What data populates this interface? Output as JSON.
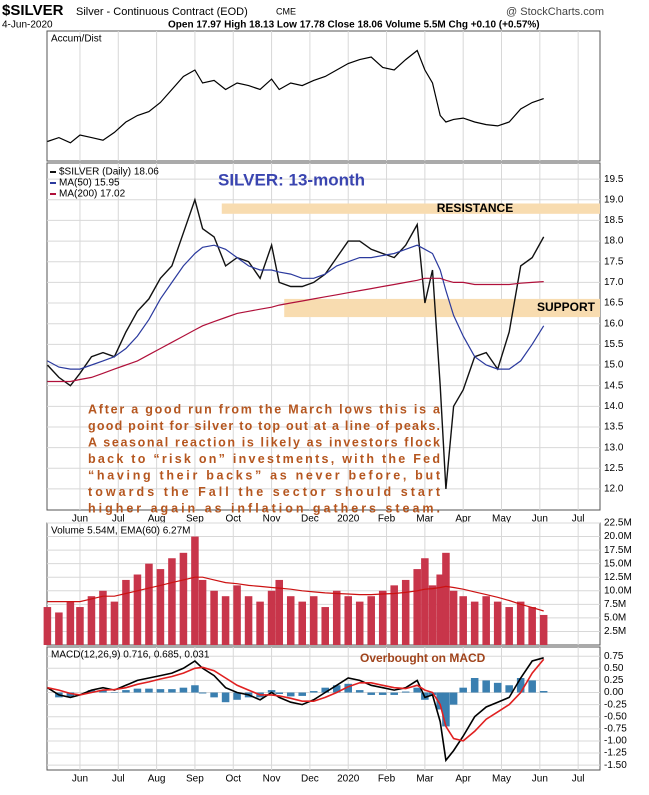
{
  "header": {
    "symbol": "$SILVER",
    "name": "Silver - Continuous Contract (EOD)",
    "exchange": "CME",
    "source": "@ StockCharts.com",
    "date": "4-Jun-2020",
    "quote": "Open 17.97  High 18.13  Low 17.78  Close 18.06  Volume 5.5M  Chg +0.10 (+0.57%)"
  },
  "chart_data": [
    {
      "type": "line",
      "legend": "Accum/Dist",
      "xlim": [
        -0.86,
        13.57
      ],
      "ylim": [
        0,
        100
      ],
      "x": [
        -0.85,
        -0.55,
        -0.25,
        0,
        0.3,
        0.6,
        0.9,
        1.2,
        1.5,
        1.8,
        2.1,
        2.4,
        2.7,
        3.0,
        3.2,
        3.5,
        3.8,
        4.1,
        4.4,
        4.7,
        5.0,
        5.2,
        5.5,
        5.8,
        6.1,
        6.4,
        6.7,
        7.0,
        7.3,
        7.6,
        7.9,
        8.2,
        8.5,
        8.8,
        9.0,
        9.2,
        9.4,
        9.55,
        9.75,
        10.0,
        10.3,
        10.6,
        10.9,
        11.2,
        11.5,
        11.8,
        12.1
      ],
      "series": [
        {
          "color": "#000000",
          "values": [
            15,
            18,
            14,
            20,
            18,
            16,
            22,
            30,
            35,
            38,
            45,
            55,
            65,
            70,
            60,
            62,
            55,
            60,
            58,
            55,
            63,
            55,
            60,
            58,
            62,
            65,
            70,
            75,
            78,
            80,
            72,
            70,
            78,
            85,
            70,
            60,
            35,
            30,
            32,
            33,
            30,
            28,
            27,
            30,
            40,
            45,
            48
          ]
        }
      ]
    },
    {
      "type": "line",
      "title": "SILVER: 13-month",
      "xlim": [
        -0.86,
        13.57
      ],
      "ylim": [
        11.49,
        19.89
      ],
      "xticks": [
        {
          "value": 0,
          "label": "Jun"
        },
        {
          "value": 1,
          "label": "Jul"
        },
        {
          "value": 2,
          "label": "Aug"
        },
        {
          "value": 3,
          "label": "Sep"
        },
        {
          "value": 4,
          "label": "Oct"
        },
        {
          "value": 5,
          "label": "Nov"
        },
        {
          "value": 6,
          "label": "Dec"
        },
        {
          "value": 7,
          "label": "2020"
        },
        {
          "value": 8,
          "label": "Feb"
        },
        {
          "value": 9,
          "label": "Mar"
        },
        {
          "value": 10,
          "label": "Apr"
        },
        {
          "value": 11,
          "label": "May"
        },
        {
          "value": 12,
          "label": "Jun"
        },
        {
          "value": 13,
          "label": "Jul"
        }
      ],
      "yticks": [
        {
          "value": 12,
          "label": "12.0"
        },
        {
          "value": 12.5,
          "label": "12.5"
        },
        {
          "value": 13,
          "label": "13.0"
        },
        {
          "value": 13.5,
          "label": "13.5"
        },
        {
          "value": 14,
          "label": "14.0"
        },
        {
          "value": 14.5,
          "label": "14.5"
        },
        {
          "value": 15,
          "label": "15.0"
        },
        {
          "value": 15.5,
          "label": "15.5"
        },
        {
          "value": 16,
          "label": "16.0"
        },
        {
          "value": 16.5,
          "label": "16.5"
        },
        {
          "value": 17,
          "label": "17.0"
        },
        {
          "value": 17.5,
          "label": "17.5"
        },
        {
          "value": 18,
          "label": "18.0"
        },
        {
          "value": 18.5,
          "label": "18.5"
        },
        {
          "value": 19,
          "label": "19.0"
        },
        {
          "value": 19.5,
          "label": "19.5"
        }
      ],
      "grid": true,
      "x": [
        -0.85,
        -0.55,
        -0.25,
        0,
        0.3,
        0.6,
        0.9,
        1.2,
        1.5,
        1.8,
        2.1,
        2.4,
        2.7,
        3.0,
        3.2,
        3.5,
        3.8,
        4.1,
        4.4,
        4.7,
        5.0,
        5.2,
        5.5,
        5.8,
        6.1,
        6.4,
        6.7,
        7.0,
        7.3,
        7.6,
        7.9,
        8.2,
        8.5,
        8.8,
        9.0,
        9.2,
        9.4,
        9.55,
        9.75,
        10.0,
        10.3,
        10.6,
        10.9,
        11.2,
        11.5,
        11.8,
        12.1
      ],
      "series": [
        {
          "name": "$SILVER (Daily) 18.06",
          "color": "#111111",
          "values": [
            15.0,
            14.7,
            14.5,
            14.8,
            15.2,
            15.3,
            15.2,
            15.8,
            16.3,
            16.6,
            17.1,
            17.4,
            18.2,
            19.0,
            18.3,
            18.1,
            17.4,
            17.6,
            17.5,
            17.1,
            17.9,
            17.0,
            16.9,
            16.9,
            17.0,
            17.2,
            17.6,
            18.0,
            18.0,
            17.8,
            17.7,
            17.6,
            17.9,
            18.4,
            16.5,
            17.3,
            14.5,
            12.0,
            14.0,
            14.4,
            15.2,
            15.3,
            14.9,
            15.8,
            17.4,
            17.6,
            18.1
          ]
        },
        {
          "name": "MA(50) 15.95",
          "color": "#2b3a9e",
          "values": [
            15.1,
            14.95,
            14.9,
            14.9,
            15.0,
            15.1,
            15.2,
            15.4,
            15.7,
            16.1,
            16.6,
            17.0,
            17.4,
            17.7,
            17.85,
            17.9,
            17.8,
            17.6,
            17.4,
            17.3,
            17.3,
            17.25,
            17.2,
            17.1,
            17.1,
            17.2,
            17.4,
            17.5,
            17.6,
            17.6,
            17.65,
            17.7,
            17.8,
            17.9,
            17.8,
            17.7,
            17.3,
            16.8,
            16.2,
            15.7,
            15.2,
            15.0,
            14.9,
            14.9,
            15.1,
            15.5,
            15.95
          ]
        },
        {
          "name": "MA(200) 17.02",
          "color": "#b0103a",
          "values": [
            14.6,
            14.6,
            14.6,
            14.65,
            14.7,
            14.8,
            14.9,
            15.0,
            15.1,
            15.25,
            15.4,
            15.55,
            15.7,
            15.85,
            15.95,
            16.05,
            16.15,
            16.25,
            16.3,
            16.35,
            16.4,
            16.45,
            16.5,
            16.55,
            16.6,
            16.65,
            16.7,
            16.75,
            16.8,
            16.85,
            16.9,
            16.95,
            17.0,
            17.05,
            17.1,
            17.1,
            17.1,
            17.05,
            17.0,
            17.0,
            16.95,
            16.95,
            16.95,
            16.95,
            16.98,
            17.0,
            17.02
          ]
        }
      ],
      "bands": [
        {
          "label": "RESISTANCE",
          "range": [
            18.66,
            18.91
          ],
          "x_start": 3.7,
          "color": "#f8dcb0"
        },
        {
          "label": "SUPPORT",
          "range": [
            16.16,
            16.6
          ],
          "x_start": 5.33,
          "color": "#f8dcb0"
        }
      ],
      "annotation": [
        "After a good run from the March lows this is a",
        "good point for silver to top out at a line of peaks.",
        "A seasonal reaction is likely as investors flock",
        "back to “risk on” investments, with the Fed",
        "“having their backs” as never before, but",
        "towards the Fall the sector should start",
        "higher again as inflation gathers steam."
      ]
    },
    {
      "type": "bar",
      "legend": "Volume 5.54M, EMA(60) 6.27M",
      "xlim": [
        -0.86,
        13.57
      ],
      "ylim": [
        0,
        22.5
      ],
      "yticks": [
        {
          "value": 2.5,
          "label": "2.5M"
        },
        {
          "value": 5,
          "label": "5.0M"
        },
        {
          "value": 7.5,
          "label": "7.5M"
        },
        {
          "value": 10,
          "label": "10.0M"
        },
        {
          "value": 12.5,
          "label": "12.5M"
        },
        {
          "value": 15,
          "label": "15.0M"
        },
        {
          "value": 17.5,
          "label": "17.5M"
        },
        {
          "value": 20,
          "label": "20.0M"
        },
        {
          "value": 22.5,
          "label": "22.5M"
        }
      ],
      "grid": true,
      "x": [
        -0.85,
        -0.55,
        -0.25,
        0,
        0.3,
        0.6,
        0.9,
        1.2,
        1.5,
        1.8,
        2.1,
        2.4,
        2.7,
        3.0,
        3.2,
        3.5,
        3.8,
        4.1,
        4.4,
        4.7,
        5.0,
        5.2,
        5.5,
        5.8,
        6.1,
        6.4,
        6.7,
        7.0,
        7.3,
        7.6,
        7.9,
        8.2,
        8.5,
        8.8,
        9.0,
        9.2,
        9.4,
        9.55,
        9.75,
        10.0,
        10.3,
        10.6,
        10.9,
        11.2,
        11.5,
        11.8,
        12.1
      ],
      "series": [
        {
          "type": "bar",
          "color": "#c8354a",
          "values": [
            7,
            6,
            8,
            7,
            9,
            10,
            8,
            12,
            13,
            15,
            14,
            16,
            17,
            20,
            12,
            10,
            9,
            11,
            9,
            8,
            10,
            12,
            9,
            8,
            9,
            7,
            10,
            9,
            8,
            9,
            10,
            11,
            12,
            14,
            16,
            11,
            13,
            17,
            10,
            9,
            8,
            9,
            8,
            7,
            8,
            7,
            5.54
          ]
        },
        {
          "type": "line",
          "color": "#cc1111",
          "values": [
            8,
            8,
            8,
            8,
            8.5,
            9,
            9,
            9.5,
            10,
            10.5,
            11,
            11.5,
            12,
            12.5,
            12.5,
            12,
            11.5,
            11.3,
            11,
            10.8,
            10.6,
            10.5,
            10.3,
            10,
            9.8,
            9.6,
            9.5,
            9.4,
            9.3,
            9.3,
            9.4,
            9.5,
            9.7,
            10,
            10.3,
            10.4,
            10.6,
            10.8,
            10.6,
            10.3,
            9.8,
            9.3,
            8.8,
            8.2,
            7.5,
            6.9,
            6.27
          ]
        }
      ]
    },
    {
      "type": "line",
      "legend": "MACD(12,26,9) 0.716, 0.685, 0.031",
      "annotation": "Overbought on MACD",
      "xlim": [
        -0.86,
        13.57
      ],
      "ylim": [
        -1.6,
        0.94
      ],
      "xticks": [
        {
          "value": 0,
          "label": "Jun"
        },
        {
          "value": 1,
          "label": "Jul"
        },
        {
          "value": 2,
          "label": "Aug"
        },
        {
          "value": 3,
          "label": "Sep"
        },
        {
          "value": 4,
          "label": "Oct"
        },
        {
          "value": 5,
          "label": "Nov"
        },
        {
          "value": 6,
          "label": "Dec"
        },
        {
          "value": 7,
          "label": "2020"
        },
        {
          "value": 8,
          "label": "Feb"
        },
        {
          "value": 9,
          "label": "Mar"
        },
        {
          "value": 10,
          "label": "Apr"
        },
        {
          "value": 11,
          "label": "May"
        },
        {
          "value": 12,
          "label": "Jun"
        },
        {
          "value": 13,
          "label": "Jul"
        }
      ],
      "yticks": [
        {
          "value": -1.5,
          "label": "-1.50"
        },
        {
          "value": -1.25,
          "label": "-1.25"
        },
        {
          "value": -1,
          "label": "-1.00"
        },
        {
          "value": -0.75,
          "label": "-0.75"
        },
        {
          "value": -0.5,
          "label": "-0.50"
        },
        {
          "value": -0.25,
          "label": "-0.25"
        },
        {
          "value": 0,
          "label": "0.00"
        },
        {
          "value": 0.25,
          "label": "0.25"
        },
        {
          "value": 0.5,
          "label": "0.50"
        },
        {
          "value": 0.75,
          "label": "0.75"
        }
      ],
      "grid": true,
      "x": [
        -0.85,
        -0.55,
        -0.25,
        0,
        0.3,
        0.6,
        0.9,
        1.2,
        1.5,
        1.8,
        2.1,
        2.4,
        2.7,
        3.0,
        3.2,
        3.5,
        3.8,
        4.1,
        4.4,
        4.7,
        5.0,
        5.2,
        5.5,
        5.8,
        6.1,
        6.4,
        6.7,
        7.0,
        7.3,
        7.6,
        7.9,
        8.2,
        8.5,
        8.8,
        9.0,
        9.2,
        9.4,
        9.55,
        9.75,
        10.0,
        10.3,
        10.6,
        10.9,
        11.2,
        11.5,
        11.8,
        12.1
      ],
      "series": [
        {
          "type": "bar",
          "color": "#3a7fb0",
          "values": [
            0,
            -0.1,
            -0.08,
            0,
            0.05,
            0.05,
            -0.01,
            0.05,
            0.08,
            0.08,
            0.07,
            0.07,
            0.1,
            0.15,
            -0.02,
            -0.1,
            -0.2,
            -0.15,
            -0.1,
            -0.1,
            0.05,
            -0.03,
            -0.08,
            -0.07,
            0.03,
            0.1,
            0.15,
            0.18,
            0.05,
            -0.05,
            -0.05,
            -0.05,
            0.02,
            0.1,
            -0.15,
            -0.05,
            -0.35,
            -0.7,
            -0.25,
            0.1,
            0.3,
            0.25,
            0.2,
            0.15,
            0.3,
            0.25,
            0.031
          ]
        },
        {
          "type": "line",
          "color": "#000000",
          "values": [
            0.1,
            -0.05,
            -0.1,
            -0.05,
            0.05,
            0.1,
            0.05,
            0.15,
            0.25,
            0.3,
            0.35,
            0.4,
            0.5,
            0.65,
            0.5,
            0.35,
            0.1,
            0.0,
            -0.05,
            -0.15,
            0.0,
            -0.1,
            -0.2,
            -0.25,
            -0.15,
            0.0,
            0.15,
            0.3,
            0.25,
            0.15,
            0.1,
            0.05,
            0.1,
            0.25,
            -0.1,
            -0.05,
            -0.6,
            -1.4,
            -1.2,
            -0.9,
            -0.5,
            -0.3,
            -0.2,
            -0.1,
            0.3,
            0.65,
            0.716
          ]
        },
        {
          "type": "line",
          "color": "#e02020",
          "values": [
            0.1,
            0.05,
            -0.02,
            -0.05,
            0.0,
            0.05,
            0.06,
            0.1,
            0.17,
            0.22,
            0.28,
            0.33,
            0.4,
            0.5,
            0.52,
            0.45,
            0.3,
            0.15,
            0.05,
            -0.05,
            -0.05,
            -0.07,
            -0.12,
            -0.18,
            -0.18,
            -0.1,
            0.0,
            0.12,
            0.2,
            0.2,
            0.15,
            0.1,
            0.08,
            0.15,
            0.05,
            0.0,
            -0.25,
            -0.7,
            -0.95,
            -1.0,
            -0.8,
            -0.55,
            -0.4,
            -0.25,
            0.0,
            0.4,
            0.685
          ]
        }
      ]
    }
  ]
}
